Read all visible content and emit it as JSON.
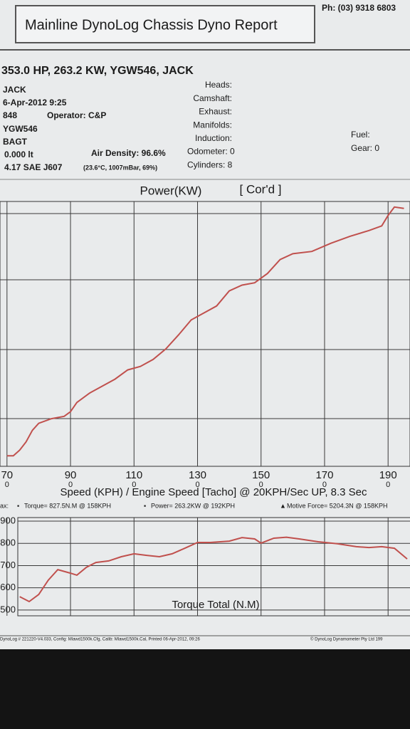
{
  "header": {
    "title": "Mainline DynoLog Chassis Dyno Report",
    "phone": "Ph: (03) 9318 6803"
  },
  "info": {
    "summary": "353.0 HP, 263.2 KW, YGW546, JACK",
    "left": [
      "JACK",
      "6-Apr-2012 9:25",
      "848",
      "YGW546",
      "BAGT",
      "0.000 lt",
      "4.17 SAE J607"
    ],
    "operator": "Operator: C&P",
    "air_density": "Air Density: 96.6%",
    "conditions": "(23.6°C, 1007mBar, 69%)",
    "middle": [
      "Heads:",
      "Camshaft:",
      "Exhaust:",
      "Manifolds:",
      "Induction:",
      "Odometer: 0",
      "Cylinders: 8"
    ],
    "right": [
      "Fuel:",
      "Gear: 0"
    ]
  },
  "chart_data": [
    {
      "type": "line",
      "title": "Power(KW)",
      "subtitle": "[ Cor'd ]",
      "x_label": "Speed (KPH) / Engine Speed [Tacho] @ 20KPH/Sec UP, 8.3 Sec",
      "color": "#c0504d",
      "xlim": [
        67.8,
        196.9
      ],
      "ylim": [
        40,
        268
      ],
      "xticks": [
        70,
        90,
        110,
        130,
        150,
        170,
        190
      ],
      "engine_speed_ticks": [
        0,
        0,
        0,
        0,
        0,
        0,
        0
      ],
      "x": [
        70,
        72,
        74,
        76,
        78,
        80,
        84,
        88,
        90,
        92,
        96,
        100,
        104,
        108,
        112,
        116,
        120,
        124,
        128,
        132,
        136,
        140,
        144,
        148,
        152,
        156,
        160,
        166,
        172,
        178,
        184,
        188,
        190,
        192,
        195
      ],
      "values": [
        49,
        49,
        54,
        61,
        71,
        77,
        81,
        83,
        87,
        95,
        103,
        109,
        115,
        123,
        126,
        132,
        141,
        153,
        166,
        172,
        178,
        191,
        196,
        198,
        206,
        218,
        223,
        225,
        232,
        238,
        243,
        247,
        256,
        263.2,
        262
      ]
    },
    {
      "type": "line",
      "title": "Torque Total (N.M)",
      "color": "#c0504d",
      "xlim": [
        67.8,
        196.9
      ],
      "ylim": [
        474,
        916
      ],
      "yticks": [
        900,
        800,
        700,
        600,
        500
      ],
      "legend": [
        "ax:",
        "Torque= 827.5N.M @ 158KPH",
        "Power= 263.2KW @ 192KPH",
        "Motive Force= 5204.3N @ 158KPH"
      ],
      "x": [
        74,
        77,
        80,
        83,
        86,
        90,
        92,
        95,
        98,
        102,
        106,
        110,
        114,
        118,
        122,
        126,
        130,
        134,
        140,
        144,
        148,
        150,
        154,
        158,
        162,
        168,
        174,
        180,
        184,
        188,
        192,
        196
      ],
      "values": [
        560,
        538,
        570,
        634,
        682,
        666,
        657,
        692,
        714,
        721,
        740,
        753,
        746,
        740,
        753,
        778,
        804,
        804,
        810,
        826,
        820,
        801,
        823,
        827.5,
        820,
        807,
        798,
        785,
        781,
        785,
        778,
        730
      ]
    }
  ],
  "footer": {
    "left": "DynoLog # 221220-V4.033, Config: Mlawd1500k.Cfg, Calib: Mlawd1500k.Cal, Printed 06-Apr-2012, 09:26",
    "right": "© DynoLog Dynamometer Pty Ltd 199"
  }
}
